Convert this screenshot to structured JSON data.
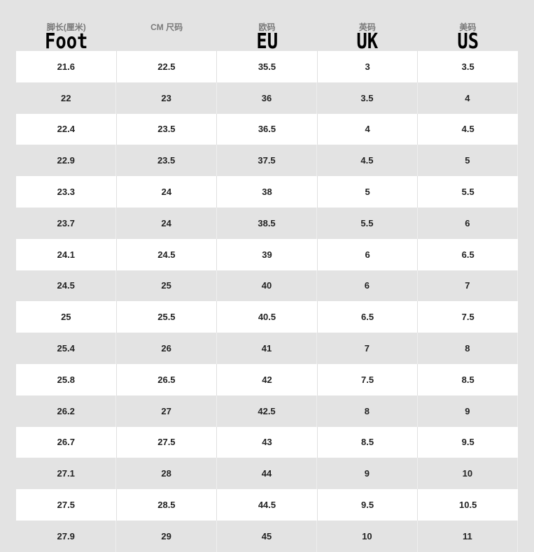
{
  "headers": [
    {
      "zh": "脚长(厘米)",
      "en": "Foot"
    },
    {
      "zh": "CM 尺码",
      "en": ""
    },
    {
      "zh": "欧码",
      "en": "EU"
    },
    {
      "zh": "英码",
      "en": "UK"
    },
    {
      "zh": "美码",
      "en": "US"
    }
  ],
  "rows": [
    [
      "21.6",
      "22.5",
      "35.5",
      "3",
      "3.5"
    ],
    [
      "22",
      "23",
      "36",
      "3.5",
      "4"
    ],
    [
      "22.4",
      "23.5",
      "36.5",
      "4",
      "4.5"
    ],
    [
      "22.9",
      "23.5",
      "37.5",
      "4.5",
      "5"
    ],
    [
      "23.3",
      "24",
      "38",
      "5",
      "5.5"
    ],
    [
      "23.7",
      "24",
      "38.5",
      "5.5",
      "6"
    ],
    [
      "24.1",
      "24.5",
      "39",
      "6",
      "6.5"
    ],
    [
      "24.5",
      "25",
      "40",
      "6",
      "7"
    ],
    [
      "25",
      "25.5",
      "40.5",
      "6.5",
      "7.5"
    ],
    [
      "25.4",
      "26",
      "41",
      "7",
      "8"
    ],
    [
      "25.8",
      "26.5",
      "42",
      "7.5",
      "8.5"
    ],
    [
      "26.2",
      "27",
      "42.5",
      "8",
      "9"
    ],
    [
      "26.7",
      "27.5",
      "43",
      "8.5",
      "9.5"
    ],
    [
      "27.1",
      "28",
      "44",
      "9",
      "10"
    ],
    [
      "27.5",
      "28.5",
      "44.5",
      "9.5",
      "10.5"
    ],
    [
      "27.9",
      "29",
      "45",
      "10",
      "11"
    ]
  ]
}
